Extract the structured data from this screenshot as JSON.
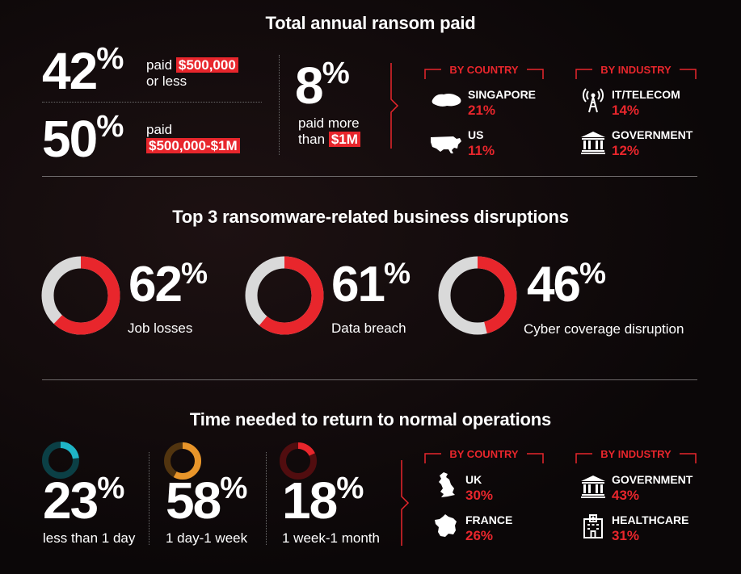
{
  "section1": {
    "title": "Total annual ransom paid",
    "stat1": {
      "value": "42",
      "unit": "%",
      "label_pre": "paid",
      "highlight": "$500,000",
      "label_post": "or less"
    },
    "stat2": {
      "value": "50",
      "unit": "%",
      "label_pre": "paid",
      "highlight": "$500,000-$1M"
    },
    "stat3": {
      "value": "8",
      "unit": "%",
      "label_pre": "paid more",
      "label_mid": "than",
      "highlight": "$1M"
    },
    "by_country": {
      "label": "BY COUNTRY",
      "items": [
        {
          "name": "SINGAPORE",
          "value": "21%",
          "icon": "singapore-map-icon"
        },
        {
          "name": "US",
          "value": "11%",
          "icon": "us-map-icon"
        }
      ]
    },
    "by_industry": {
      "label": "BY INDUSTRY",
      "items": [
        {
          "name": "IT/TELECOM",
          "value": "14%",
          "icon": "telecom-tower-icon"
        },
        {
          "name": "GOVERNMENT",
          "value": "12%",
          "icon": "government-building-icon"
        }
      ]
    }
  },
  "section2": {
    "title": "Top 3 ransomware-related business disruptions",
    "items": [
      {
        "value": "62",
        "unit": "%",
        "label": "Job losses"
      },
      {
        "value": "61",
        "unit": "%",
        "label": "Data breach"
      },
      {
        "value": "46",
        "unit": "%",
        "label": "Cyber coverage disruption"
      }
    ]
  },
  "section3": {
    "title": "Time needed to return to normal operations",
    "items": [
      {
        "value": "23",
        "unit": "%",
        "label": "less than 1 day",
        "color": "#1fb4c6"
      },
      {
        "value": "58",
        "unit": "%",
        "label": "1 day-1 week",
        "color": "#e8952a"
      },
      {
        "value": "18",
        "unit": "%",
        "label": "1 week-1 month",
        "color": "#e8262c"
      }
    ],
    "by_country": {
      "label": "BY COUNTRY",
      "items": [
        {
          "name": "UK",
          "value": "30%",
          "icon": "uk-map-icon"
        },
        {
          "name": "FRANCE",
          "value": "26%",
          "icon": "france-map-icon"
        }
      ]
    },
    "by_industry": {
      "label": "BY INDUSTRY",
      "items": [
        {
          "name": "GOVERNMENT",
          "value": "43%",
          "icon": "government-building-icon"
        },
        {
          "name": "HEALTHCARE",
          "value": "31%",
          "icon": "hospital-icon"
        }
      ]
    }
  },
  "colors": {
    "accent": "#e8262c",
    "ring_bg": "#d9d9d9"
  },
  "chart_data": [
    {
      "type": "pie",
      "categories": [
        "Job losses",
        "Data breach",
        "Cyber coverage disruption"
      ],
      "values": [
        62,
        61,
        46
      ]
    },
    {
      "type": "pie",
      "categories": [
        "less than 1 day",
        "1 day-1 week",
        "1 week-1 month"
      ],
      "values": [
        23,
        58,
        18
      ]
    }
  ]
}
